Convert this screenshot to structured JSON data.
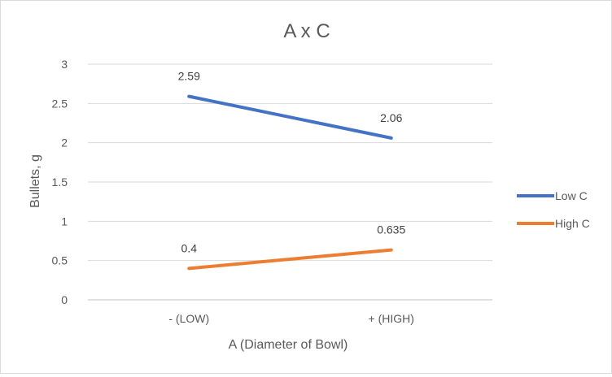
{
  "chart_data": {
    "type": "line",
    "title": "A x C",
    "xlabel": "A (Diameter of Bowl)",
    "ylabel": "Bullets, g",
    "categories": [
      "- (LOW)",
      "+ (HIGH)"
    ],
    "ylim": [
      0,
      3
    ],
    "yticks": [
      "0",
      "0.5",
      "1",
      "1.5",
      "2",
      "2.5",
      "3"
    ],
    "grid": true,
    "legend_position": "right",
    "series": [
      {
        "name": "Low C",
        "values": [
          2.59,
          2.06
        ],
        "labels": [
          "2.59",
          "2.06"
        ],
        "color": "#4472C4"
      },
      {
        "name": "High C",
        "values": [
          0.4,
          0.635
        ],
        "labels": [
          "0.4",
          "0.635"
        ],
        "color": "#ED7D31"
      }
    ]
  }
}
